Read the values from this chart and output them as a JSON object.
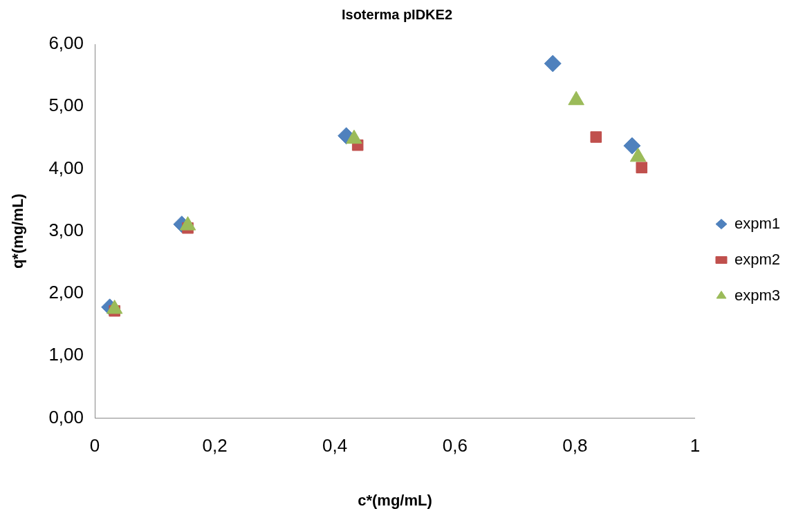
{
  "chart_data": {
    "type": "scatter",
    "title": "Isoterma pIDKE2",
    "xlabel": "c*(mg/mL)",
    "ylabel": "q*(mg/mL)",
    "xlim": [
      0,
      1
    ],
    "xticks": [
      0,
      {
        "value": 0.2,
        "label": "0,2"
      },
      {
        "value": 0.4,
        "label": "0,4"
      },
      {
        "value": 0.6,
        "label": "0,6"
      },
      {
        "value": 0.8,
        "label": "0,8"
      },
      1
    ],
    "ylim": [
      0,
      6
    ],
    "yticks": [
      {
        "value": 0,
        "label": "0,00"
      },
      {
        "value": 1,
        "label": "1,00"
      },
      {
        "value": 2,
        "label": "2,00"
      },
      {
        "value": 3,
        "label": "3,00"
      },
      {
        "value": 4,
        "label": "4,00"
      },
      {
        "value": 5,
        "label": "5,00"
      },
      {
        "value": 6,
        "label": "6,00"
      }
    ],
    "grid": false,
    "legend": "right",
    "series": [
      {
        "name": "expm1",
        "color": "#4f81bd",
        "marker": "diamond",
        "x": [
          0.025,
          0.145,
          0.419,
          0.763,
          0.895
        ],
        "values": [
          1.78,
          3.11,
          4.53,
          5.69,
          4.37
        ]
      },
      {
        "name": "expm2",
        "color": "#c0504d",
        "marker": "square",
        "x": [
          0.033,
          0.155,
          0.438,
          0.835,
          0.911
        ],
        "values": [
          1.72,
          3.05,
          4.38,
          4.51,
          4.02
        ]
      },
      {
        "name": "expm3",
        "color": "#9bbb59",
        "marker": "triangle",
        "x": [
          0.033,
          0.155,
          0.432,
          0.802,
          0.905
        ],
        "values": [
          1.75,
          3.09,
          4.48,
          5.1,
          4.19
        ]
      }
    ]
  }
}
